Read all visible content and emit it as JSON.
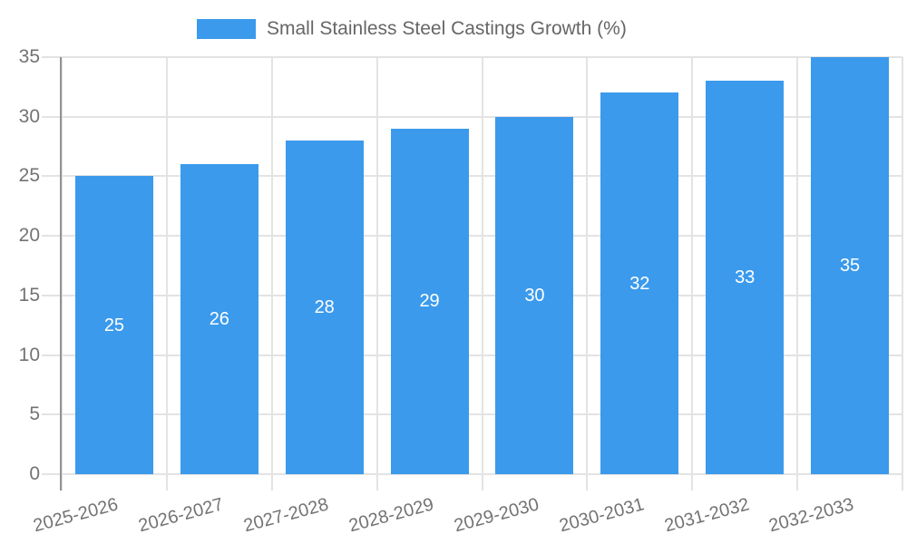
{
  "chart_data": {
    "type": "bar",
    "title": "Small Stainless Steel Castings Growth (%)",
    "categories": [
      "2025-2026",
      "2026-2027",
      "2027-2028",
      "2028-2029",
      "2029-2030",
      "2030-2031",
      "2031-2032",
      "2032-2033"
    ],
    "series": [
      {
        "name": "Small Stainless Steel Castings Growth (%)",
        "values": [
          25,
          26,
          28,
          29,
          30,
          32,
          33,
          35
        ]
      }
    ],
    "bar_value_labels": [
      "25",
      "26",
      "28",
      "29",
      "30",
      "32",
      "33",
      "35"
    ],
    "xlabel": "",
    "ylabel": "",
    "ylim": [
      0,
      35
    ],
    "yticks": [
      "0",
      "5",
      "10",
      "15",
      "20",
      "25",
      "30",
      "35"
    ],
    "grid": true,
    "legend_position": "top",
    "colors": {
      "bar": "#3b9aec",
      "bar_value_text": "#ffffff",
      "gridline": "#e3e3e3",
      "axis_line": "#919191",
      "tick_text": "#737373",
      "legend_text": "#666666"
    }
  }
}
